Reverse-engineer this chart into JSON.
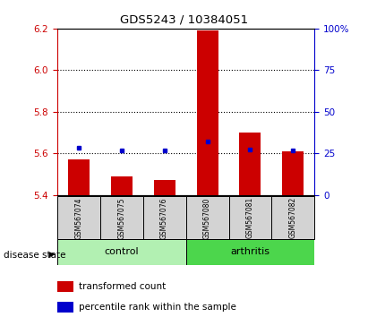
{
  "title": "GDS5243 / 10384051",
  "samples": [
    "GSM567074",
    "GSM567075",
    "GSM567076",
    "GSM567080",
    "GSM567081",
    "GSM567082"
  ],
  "groups": [
    "control",
    "control",
    "control",
    "arthritis",
    "arthritis",
    "arthritis"
  ],
  "transformed_count": [
    5.57,
    5.49,
    5.47,
    6.19,
    5.7,
    5.61
  ],
  "percentile_rank": [
    28.5,
    27.0,
    27.0,
    32.0,
    27.5,
    27.0
  ],
  "bar_bottom": 5.4,
  "ylim_left": [
    5.4,
    6.2
  ],
  "ylim_right": [
    0,
    100
  ],
  "yticks_left": [
    5.4,
    5.6,
    5.8,
    6.0,
    6.2
  ],
  "yticks_right": [
    0,
    25,
    50,
    75,
    100
  ],
  "ytick_labels_right": [
    "0",
    "25",
    "50",
    "75",
    "100%"
  ],
  "bar_color": "#cc0000",
  "dot_color": "#0000cc",
  "control_color": "#b2f0b2",
  "arthritis_color": "#4cd64c",
  "group_label_bg": "#d3d3d3",
  "legend_bar_label": "transformed count",
  "legend_dot_label": "percentile rank within the sample",
  "disease_state_label": "disease state"
}
